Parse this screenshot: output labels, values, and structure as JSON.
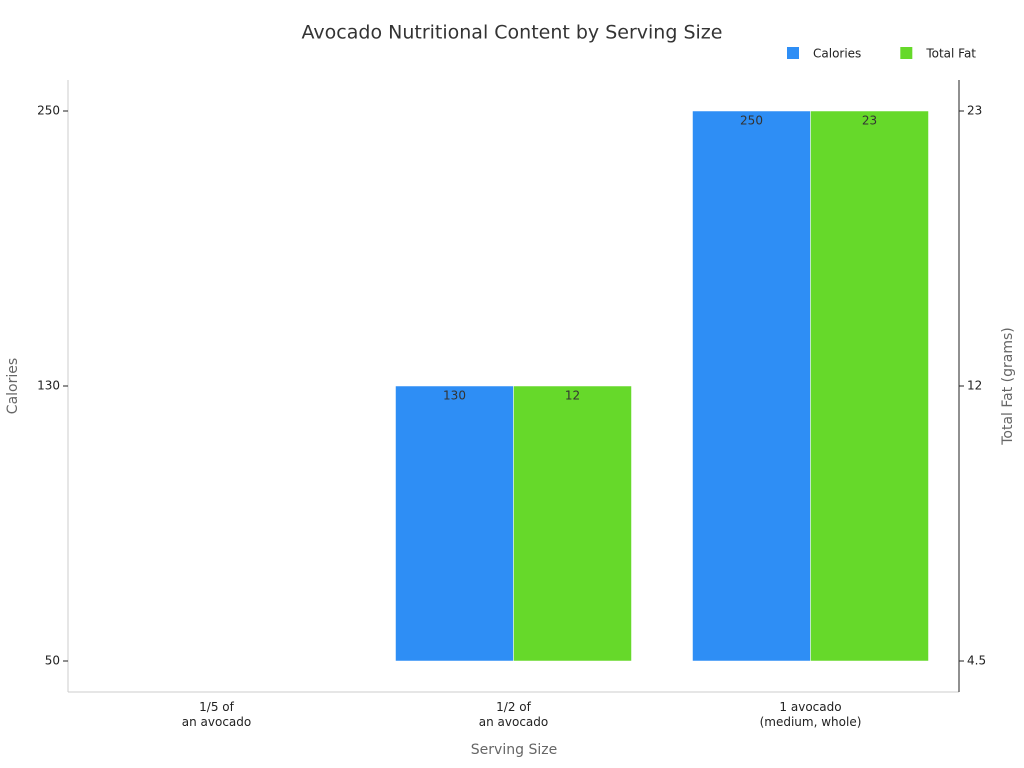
{
  "chart_data": {
    "type": "bar",
    "title": "Avocado Nutritional Content by Serving Size",
    "x_label": "Serving Size",
    "y_label": "Calories",
    "y2_label": "Total Fat (grams)",
    "categories": [
      "1/5 of\nan avocado",
      "1/2 of\nan avocado",
      "1 avocado\n(medium, whole)"
    ],
    "series": [
      {
        "name": "Calories",
        "color": "#2e8ef5",
        "values": [
          50,
          130,
          250
        ]
      },
      {
        "name": "Total Fat",
        "color": "#66d92a",
        "values": [
          4.5,
          12,
          23
        ],
        "axis": "y2"
      }
    ],
    "ylim": [
      41,
      264
    ],
    "yticks": [
      50,
      130,
      250
    ],
    "y2lim": [
      3.7,
      24.2
    ],
    "y2ticks": [
      4.5,
      12,
      23
    ],
    "legend": "top-right"
  }
}
